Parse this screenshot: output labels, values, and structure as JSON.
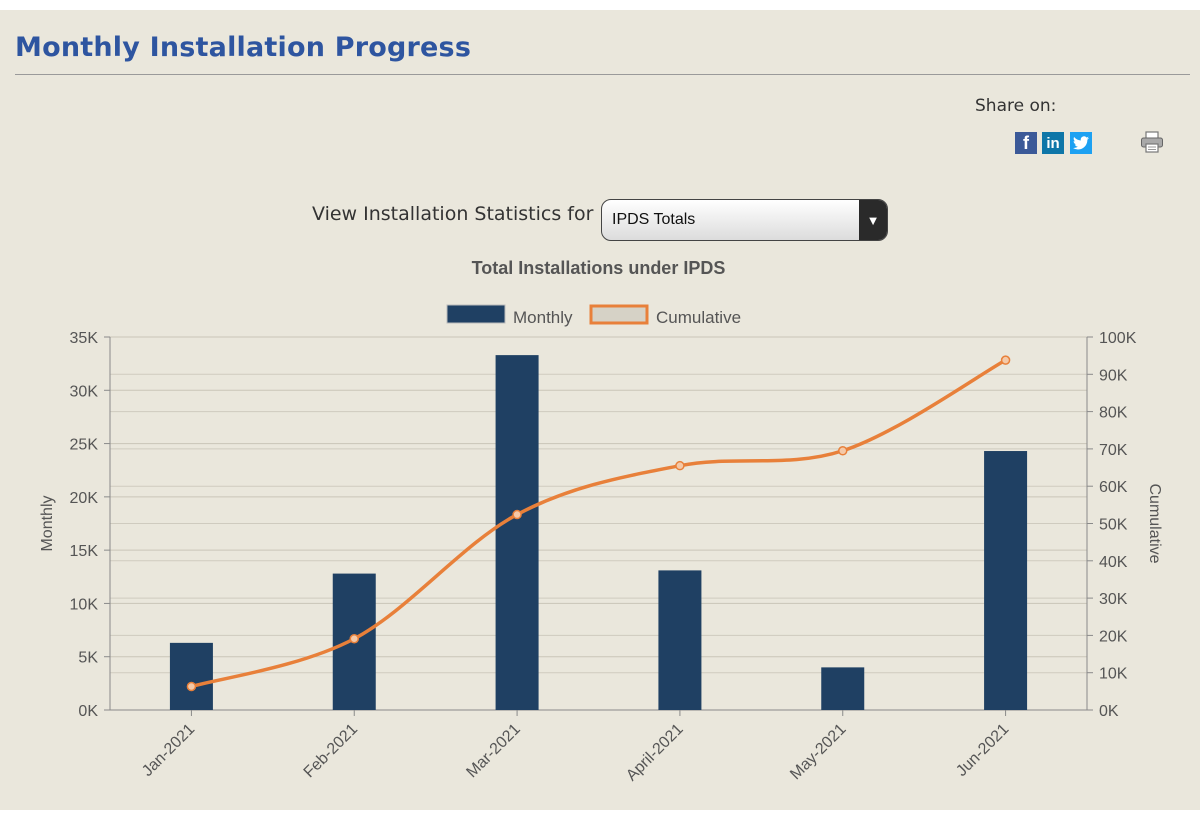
{
  "header": {
    "title": "Monthly Installation Progress"
  },
  "share": {
    "label": "Share on:",
    "networks": [
      {
        "name": "facebook",
        "glyph": "f"
      },
      {
        "name": "linkedin",
        "glyph": "in"
      },
      {
        "name": "twitter",
        "glyph": ""
      }
    ]
  },
  "filter": {
    "label": "View Installation Statistics for",
    "selected": "IPDS Totals"
  },
  "chart_data": {
    "type": "bar",
    "title": "Total Installations under IPDS",
    "categories": [
      "Jan-2021",
      "Feb-2021",
      "Mar-2021",
      "April-2021",
      "May-2021",
      "Jun-2021"
    ],
    "series": [
      {
        "name": "Monthly",
        "type": "bar",
        "axis": "left",
        "color": "#1f4063",
        "values": [
          6300,
          12800,
          33300,
          13100,
          4000,
          24300
        ]
      },
      {
        "name": "Cumulative",
        "type": "line",
        "axis": "right",
        "color": "#e8803a",
        "values": [
          6300,
          19100,
          52400,
          65500,
          69500,
          93800
        ]
      }
    ],
    "ylabel": "Monthly",
    "y2label": "Cumulative",
    "ylim": [
      0,
      35000
    ],
    "y2lim": [
      0,
      100000
    ],
    "yticks": [
      "0K",
      "5K",
      "10K",
      "15K",
      "20K",
      "25K",
      "30K",
      "35K"
    ],
    "y2ticks": [
      "0K",
      "10K",
      "20K",
      "30K",
      "40K",
      "50K",
      "60K",
      "70K",
      "80K",
      "90K",
      "100K"
    ],
    "legend_position": "top-center",
    "grid": true
  }
}
